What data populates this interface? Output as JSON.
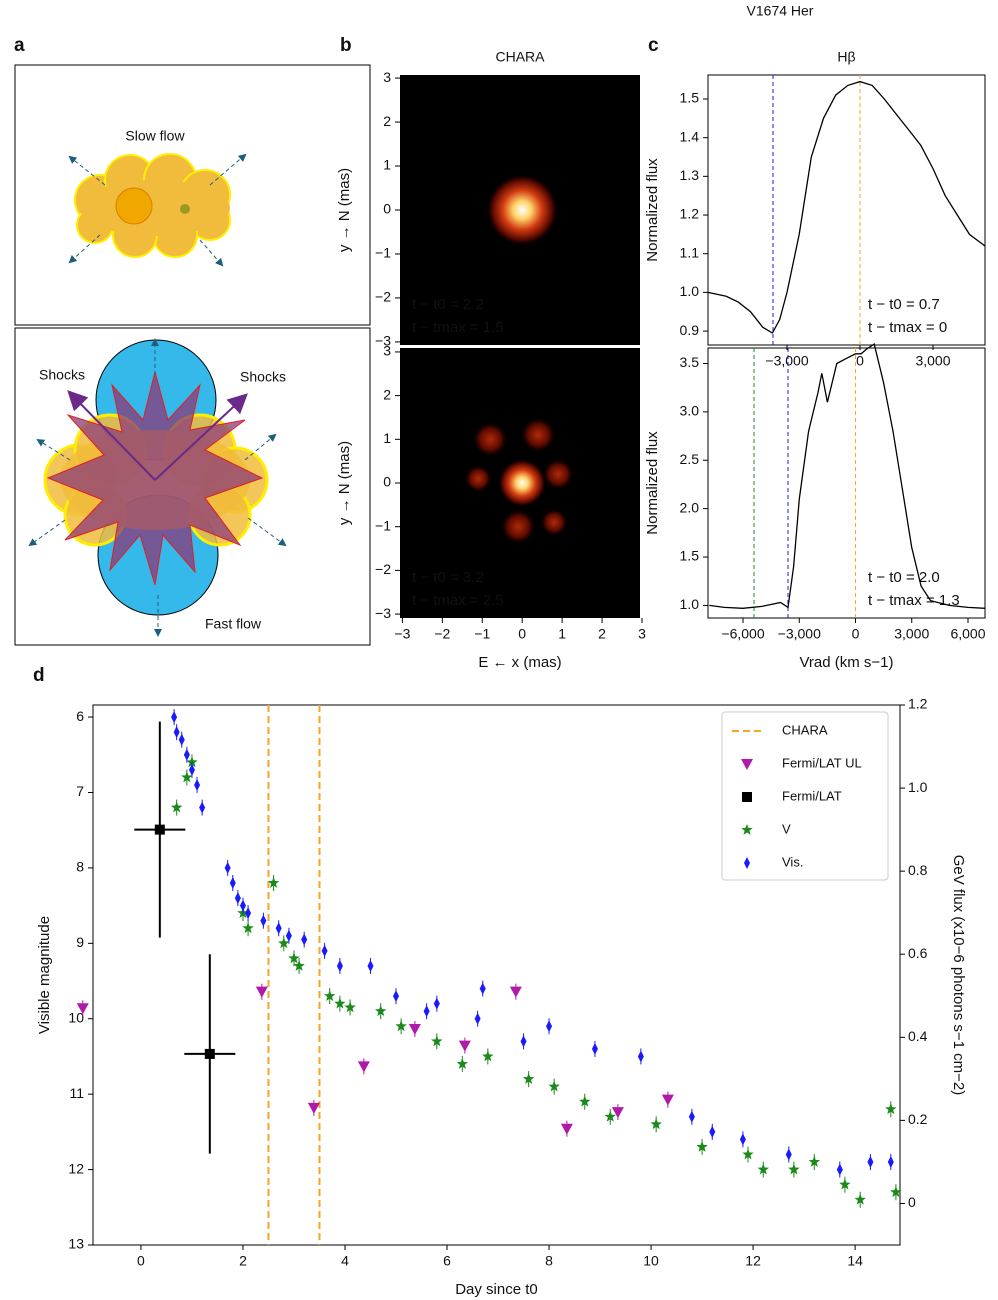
{
  "title": "V1674 Her",
  "diagram": {
    "panel": "a",
    "top": {
      "label": "Slow flow"
    },
    "bottom": {
      "labels": [
        "Shocks",
        "Shocks",
        "Fast flow"
      ]
    }
  },
  "chart_data": [
    {
      "type": "image",
      "panel": "b",
      "title": "CHARA",
      "y_label": "y → N (mas)",
      "annotations": [
        "t − t0 = 2.2",
        "t − tmax = 1.5"
      ],
      "annotation_color": "#dd0000",
      "xlim": [
        -3.06,
        2.95
      ],
      "ylim": [
        -3.07,
        3.07
      ],
      "yticks": [
        {
          "value": -3,
          "label": "−3"
        },
        {
          "value": -2,
          "label": "−2"
        },
        {
          "value": -1,
          "label": "−1"
        },
        0,
        1,
        2,
        3
      ]
    },
    {
      "type": "image",
      "y_label": "y → N (mas)",
      "x_label": "E ← x (mas)",
      "annotations": [
        "t − t0 = 3.2",
        "t − tmax = 2.5"
      ],
      "annotation_color": "#dd0000",
      "xlim": [
        -3.06,
        2.95
      ],
      "ylim": [
        -3.09,
        3.09
      ],
      "xticks": [
        {
          "value": -3,
          "label": "−3"
        },
        {
          "value": -2,
          "label": "−2"
        },
        {
          "value": -1,
          "label": "−1"
        },
        0,
        1,
        2,
        3
      ],
      "yticks": [
        {
          "value": -3,
          "label": "−3"
        },
        {
          "value": -2,
          "label": "−2"
        },
        {
          "value": -1,
          "label": "−1"
        },
        0,
        1,
        2,
        3
      ]
    },
    {
      "type": "line",
      "panel": "c",
      "title": "Hβ",
      "y_label": "Normalized flux",
      "annotations": [
        "t − t0 = 0.7",
        "t − tmax = 0"
      ],
      "annotation_color": "#1a1aff",
      "xlim": [
        -6247,
        5137
      ],
      "ylim": [
        0.864,
        1.562
      ],
      "xticks": [
        {
          "value": -3000,
          "label": "−3,000"
        },
        0,
        {
          "value": 3000,
          "label": "3,000"
        }
      ],
      "yticks": [
        0.9,
        {
          "value": 1,
          "label": "1.0"
        },
        1.1,
        1.2,
        1.3,
        1.4,
        1.5
      ],
      "vlines": [
        {
          "x": -3576,
          "color": "#1a1aff"
        },
        {
          "x": 0,
          "color": "#f5a623"
        }
      ],
      "series": [
        {
          "color": "#000000",
          "x": [
            -6247,
            -5500,
            -5000,
            -4500,
            -4000,
            -3600,
            -3300,
            -3000,
            -2500,
            -2000,
            -1500,
            -1000,
            -500,
            0,
            500,
            1000,
            1500,
            2000,
            2500,
            3000,
            3500,
            4000,
            4500,
            5137
          ],
          "values": [
            1.0,
            0.99,
            0.975,
            0.95,
            0.91,
            0.895,
            0.93,
            1.0,
            1.15,
            1.35,
            1.45,
            1.51,
            1.535,
            1.545,
            1.535,
            1.5,
            1.46,
            1.42,
            1.38,
            1.32,
            1.25,
            1.2,
            1.15,
            1.12
          ]
        }
      ]
    },
    {
      "type": "line",
      "y_label": "Normalized flux",
      "x_label": "Vrad (km s−1)",
      "annotations": [
        "t − t0 = 2.0",
        "t − tmax = 1.3"
      ],
      "annotation_color": "#1a8a1a",
      "xlim": [
        -7867,
        6907
      ],
      "ylim": [
        0.87,
        3.66
      ],
      "xticks": [
        {
          "value": -6000,
          "label": "−6,000"
        },
        {
          "value": -3000,
          "label": "−3,000"
        },
        0,
        {
          "value": 3000,
          "label": "3,000"
        },
        {
          "value": 6000,
          "label": "6,000"
        }
      ],
      "yticks": [
        {
          "value": 1,
          "label": "1.0"
        },
        1.5,
        {
          "value": 2,
          "label": "2.0"
        },
        2.5,
        {
          "value": 3,
          "label": "3.0"
        },
        3.5
      ],
      "vlines": [
        {
          "x": -5413,
          "color": "#1a8a1a"
        },
        {
          "x": -3600,
          "color": "#1a1aff"
        },
        {
          "x": 0,
          "color": "#f5a623"
        }
      ],
      "series": [
        {
          "color": "#000000",
          "x": [
            -7800,
            -7000,
            -6000,
            -5000,
            -4000,
            -3600,
            -3300,
            -3000,
            -2500,
            -2000,
            -1800,
            -1500,
            -1000,
            -500,
            0,
            300,
            600,
            1000,
            1500,
            2000,
            2500,
            3000,
            3500,
            4000,
            5000,
            6000,
            6900
          ],
          "values": [
            1.0,
            0.98,
            0.97,
            0.99,
            1.03,
            0.98,
            1.4,
            2.1,
            2.8,
            3.2,
            3.4,
            3.1,
            3.5,
            3.55,
            3.6,
            3.6,
            3.65,
            3.7,
            3.3,
            2.8,
            2.2,
            1.6,
            1.2,
            1.05,
            1.0,
            0.98,
            0.97
          ]
        }
      ]
    },
    {
      "type": "scatter",
      "panel": "d",
      "x_label": "Day since t0",
      "y_label": "Visible magnitude",
      "y2_label": "GeV flux (x10−6 photons s−1 cm−2)",
      "legend": "upper right",
      "xlim": [
        -0.94,
        14.88
      ],
      "ylim": [
        13,
        5.84
      ],
      "y2lim": [
        -0.1,
        1.2
      ],
      "xticks": [
        0,
        2,
        4,
        6,
        8,
        10,
        12,
        14
      ],
      "yticks": [
        6,
        7,
        8,
        9,
        10,
        11,
        12,
        13
      ],
      "y2ticks": [
        0,
        0.2,
        0.4,
        0.6,
        0.8,
        {
          "value": 1,
          "label": "1.0"
        },
        1.2
      ],
      "series": [
        {
          "name": "CHARA",
          "kind": "vline",
          "color": "#f5a623",
          "x": [
            2.5,
            3.5
          ]
        },
        {
          "name": "Fermi/LAT UL",
          "marker": "v",
          "color": "#b01aa8",
          "axis": "y2",
          "x": [
            -1.14,
            2.37,
            3.39,
            4.37,
            5.37,
            6.35,
            7.35,
            8.35,
            9.35,
            10.33
          ],
          "values": [
            0.47,
            0.51,
            0.23,
            0.33,
            0.42,
            0.38,
            0.51,
            0.18,
            0.22,
            0.25
          ]
        },
        {
          "name": "Fermi/LAT",
          "marker": "s",
          "color": "#000000",
          "axis": "y2",
          "x": [
            0.37,
            1.35
          ],
          "values": [
            0.9,
            0.36
          ],
          "xerr": [
            0.5,
            0.5
          ],
          "yerr": [
            0.26,
            0.24
          ]
        },
        {
          "name": "V",
          "marker": "*",
          "color": "#1a8a1a",
          "x": [
            0.7,
            0.9,
            1.0,
            2.0,
            2.1,
            2.6,
            2.8,
            3.0,
            3.1,
            3.7,
            3.9,
            4.1,
            4.7,
            5.1,
            5.8,
            6.3,
            6.8,
            7.6,
            8.1,
            8.7,
            9.2,
            10.1,
            11.0,
            11.9,
            12.2,
            12.8,
            13.2,
            13.8,
            14.1,
            14.7,
            14.8
          ],
          "values": [
            7.2,
            6.8,
            6.6,
            8.6,
            8.8,
            8.2,
            9.0,
            9.2,
            9.3,
            9.7,
            9.8,
            9.85,
            9.9,
            10.1,
            10.3,
            10.6,
            10.5,
            10.8,
            10.9,
            11.1,
            11.3,
            11.4,
            11.7,
            11.8,
            12.0,
            12.0,
            11.9,
            12.2,
            12.4,
            11.2,
            12.3
          ]
        },
        {
          "name": "Vis.",
          "marker": "d",
          "color": "#1a1aff",
          "x": [
            0.65,
            0.7,
            0.8,
            0.9,
            1.0,
            1.1,
            1.2,
            1.7,
            1.8,
            1.9,
            2.0,
            2.1,
            2.4,
            2.7,
            2.9,
            3.2,
            3.6,
            3.9,
            4.5,
            5.0,
            5.6,
            5.8,
            6.6,
            6.7,
            7.5,
            8.0,
            8.9,
            9.8,
            10.8,
            11.2,
            11.8,
            12.7,
            13.7,
            14.3,
            14.7
          ],
          "values": [
            6.0,
            6.2,
            6.3,
            6.5,
            6.7,
            6.9,
            7.2,
            8.0,
            8.2,
            8.4,
            8.5,
            8.6,
            8.7,
            8.8,
            8.9,
            8.95,
            9.1,
            9.3,
            9.3,
            9.7,
            9.9,
            9.8,
            10.0,
            9.6,
            10.3,
            10.1,
            10.4,
            10.5,
            11.3,
            11.5,
            11.6,
            11.8,
            12.0,
            11.9,
            11.9
          ]
        }
      ]
    }
  ]
}
